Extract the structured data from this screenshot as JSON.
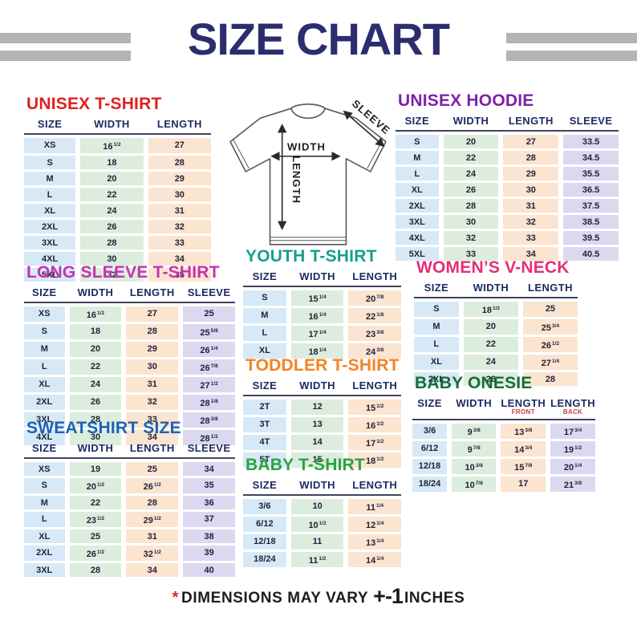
{
  "header": {
    "title": "SIZE CHART",
    "title_color": "#2b2d6e",
    "bar_color": "#b4b4b4"
  },
  "diagram": {
    "width_label": "WIDTH",
    "length_label": "LENGTH",
    "sleeve_label": "SLEEVE"
  },
  "footer": {
    "asterisk": "*",
    "note": "DIMENSIONS MAY VARY",
    "tolerance": "+-1",
    "unit": "INCHES"
  },
  "palette": {
    "size_col": "#d7e9f7",
    "width_col": "#dcedde",
    "length_col": "#fbe4d0",
    "sleeve_col": "#dbd8ef",
    "header_text": "#1d2a63",
    "cell_text": "#20243c",
    "rule": "#42425c",
    "sub_label": "#cf3b3b"
  },
  "tables": [
    {
      "id": "unisex-tshirt",
      "title": "UNISEX T-SHIRT",
      "color": "#e02020",
      "columns": [
        {
          "label": "SIZE"
        },
        {
          "label": "WIDTH"
        },
        {
          "label": "LENGTH"
        }
      ],
      "rows": [
        [
          "XS",
          "16^1/2",
          "27"
        ],
        [
          "S",
          "18",
          "28"
        ],
        [
          "M",
          "20",
          "29"
        ],
        [
          "L",
          "22",
          "30"
        ],
        [
          "XL",
          "24",
          "31"
        ],
        [
          "2XL",
          "26",
          "32"
        ],
        [
          "3XL",
          "28",
          "33"
        ],
        [
          "4XL",
          "30",
          "34"
        ],
        [
          "5XL",
          "32",
          "35"
        ]
      ]
    },
    {
      "id": "unisex-hoodie",
      "title": "UNISEX HOODIE",
      "color": "#7d22a8",
      "columns": [
        {
          "label": "SIZE"
        },
        {
          "label": "WIDTH"
        },
        {
          "label": "LENGTH"
        },
        {
          "label": "SLEEVE"
        }
      ],
      "rows": [
        [
          "S",
          "20",
          "27",
          "33.5"
        ],
        [
          "M",
          "22",
          "28",
          "34.5"
        ],
        [
          "L",
          "24",
          "29",
          "35.5"
        ],
        [
          "XL",
          "26",
          "30",
          "36.5"
        ],
        [
          "2XL",
          "28",
          "31",
          "37.5"
        ],
        [
          "3XL",
          "30",
          "32",
          "38.5"
        ],
        [
          "4XL",
          "32",
          "33",
          "39.5"
        ],
        [
          "5XL",
          "33",
          "34",
          "40.5"
        ]
      ]
    },
    {
      "id": "long-sleeve-tshirt",
      "title": "LONG SLEEVE T-SHIRT",
      "color": "#c433ae",
      "columns": [
        {
          "label": "SIZE"
        },
        {
          "label": "WIDTH"
        },
        {
          "label": "LENGTH"
        },
        {
          "label": "SLEEVE"
        }
      ],
      "rows": [
        [
          "XS",
          "16^1/2",
          "27",
          "25"
        ],
        [
          "S",
          "18",
          "28",
          "25^5/8"
        ],
        [
          "M",
          "20",
          "29",
          "26^1/4"
        ],
        [
          "L",
          "22",
          "30",
          "26^7/8"
        ],
        [
          "XL",
          "24",
          "31",
          "27^1/2"
        ],
        [
          "2XL",
          "26",
          "32",
          "28^1/8"
        ],
        [
          "3XL",
          "28",
          "33",
          "28^3/8"
        ],
        [
          "4XL",
          "30",
          "34",
          "28^1/2"
        ]
      ]
    },
    {
      "id": "youth-tshirt",
      "title": "YOUTH T-SHIRT",
      "color": "#14a08a",
      "columns": [
        {
          "label": "SIZE"
        },
        {
          "label": "WIDTH"
        },
        {
          "label": "LENGTH"
        }
      ],
      "rows": [
        [
          "S",
          "15^1/4",
          "20^7/8"
        ],
        [
          "M",
          "16^1/4",
          "22^1/8"
        ],
        [
          "L",
          "17^1/4",
          "23^3/8"
        ],
        [
          "XL",
          "18^1/4",
          "24^3/8"
        ]
      ]
    },
    {
      "id": "womens-vneck",
      "title": "WOMEN’S V-NECK",
      "color": "#e82d74",
      "columns": [
        {
          "label": "SIZE"
        },
        {
          "label": "WIDTH"
        },
        {
          "label": "LENGTH"
        }
      ],
      "rows": [
        [
          "S",
          "18^1/2",
          "25"
        ],
        [
          "M",
          "20",
          "25^3/4"
        ],
        [
          "L",
          "22",
          "26^1/2"
        ],
        [
          "XL",
          "24",
          "27^1/4"
        ],
        [
          "2XL",
          "26",
          "28"
        ]
      ]
    },
    {
      "id": "toddler-tshirt",
      "title": "TODDLER T-SHIRT",
      "color": "#f58220",
      "columns": [
        {
          "label": "SIZE"
        },
        {
          "label": "WIDTH"
        },
        {
          "label": "LENGTH"
        }
      ],
      "rows": [
        [
          "2T",
          "12",
          "15^1/2"
        ],
        [
          "3T",
          "13",
          "16^1/2"
        ],
        [
          "4T",
          "14",
          "17^1/2"
        ],
        [
          "5T",
          "15",
          "18^1/2"
        ]
      ]
    },
    {
      "id": "baby-onesie",
      "title": "BABY ONESIE",
      "color": "#156d38",
      "columns": [
        {
          "label": "SIZE"
        },
        {
          "label": "WIDTH"
        },
        {
          "label": "LENGTH",
          "sub": "FRONT"
        },
        {
          "label": "LENGTH",
          "sub": "BACK"
        }
      ],
      "rows": [
        [
          "3/6",
          "9^3/8",
          "13^3/8",
          "17^3/4"
        ],
        [
          "6/12",
          "9^7/8",
          "14^3/4",
          "19^1/2"
        ],
        [
          "12/18",
          "10^3/8",
          "15^7/8",
          "20^1/4"
        ],
        [
          "18/24",
          "10^7/8",
          "17",
          "21^3/8"
        ]
      ]
    },
    {
      "id": "sweatshirt",
      "title": "SWEATSHIRT SIZE",
      "color": "#1b62b5",
      "columns": [
        {
          "label": "SIZE"
        },
        {
          "label": "WIDTH"
        },
        {
          "label": "LENGTH"
        },
        {
          "label": "SLEEVE"
        }
      ],
      "rows": [
        [
          "XS",
          "19",
          "25",
          "34"
        ],
        [
          "S",
          "20^1/2",
          "26^1/2",
          "35"
        ],
        [
          "M",
          "22",
          "28",
          "36"
        ],
        [
          "L",
          "23^1/2",
          "29^1/2",
          "37"
        ],
        [
          "XL",
          "25",
          "31",
          "38"
        ],
        [
          "2XL",
          "26^1/2",
          "32^1/2",
          "39"
        ],
        [
          "3XL",
          "28",
          "34",
          "40"
        ]
      ]
    },
    {
      "id": "baby-tshirt",
      "title": "BABY T-SHIRT",
      "color": "#2ba33e",
      "columns": [
        {
          "label": "SIZE"
        },
        {
          "label": "WIDTH"
        },
        {
          "label": "LENGTH"
        }
      ],
      "rows": [
        [
          "3/6",
          "10",
          "11^1/4"
        ],
        [
          "6/12",
          "10^1/2",
          "12^1/4"
        ],
        [
          "12/18",
          "11",
          "13^1/4"
        ],
        [
          "18/24",
          "11^1/2",
          "14^1/4"
        ]
      ]
    }
  ]
}
